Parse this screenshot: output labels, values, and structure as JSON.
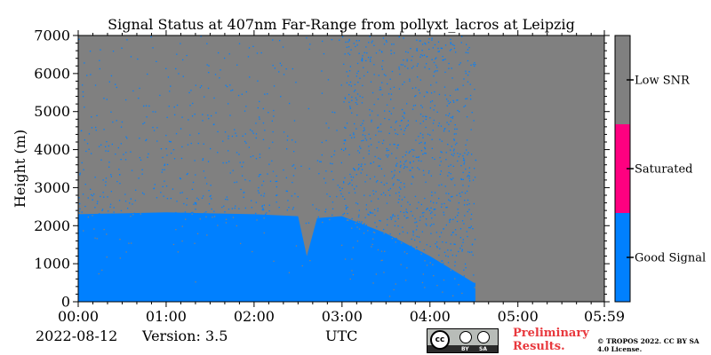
{
  "chart_data": {
    "type": "heatmap",
    "title": "Signal Status at 407nm Far-Range from pollyxt_lacros at Leipzig",
    "ylabel": "Height (m)",
    "xlabel": "UTC",
    "ylim": [
      0,
      7000
    ],
    "yticks": [
      "0",
      "1000",
      "2000",
      "3000",
      "4000",
      "5000",
      "6000",
      "7000"
    ],
    "xlim_minutes": [
      0,
      359
    ],
    "xticks": [
      "00:00",
      "01:00",
      "02:00",
      "03:00",
      "04:00",
      "05:00",
      "05:59"
    ],
    "categories": [
      "Good Signal",
      "Saturated",
      "Low SNR"
    ],
    "colors": {
      "Good Signal": "#0080ff",
      "Saturated": "#ff0080",
      "Low SNR": "#808080"
    },
    "good_signal_top_m": [
      {
        "time": "00:00",
        "height": 2300
      },
      {
        "time": "01:00",
        "height": 2350
      },
      {
        "time": "02:00",
        "height": 2300
      },
      {
        "time": "02:30",
        "height": 2250
      },
      {
        "time": "02:36",
        "height": 1200
      },
      {
        "time": "02:43",
        "height": 2200
      },
      {
        "time": "03:00",
        "height": 2250
      },
      {
        "time": "03:30",
        "height": 1800
      },
      {
        "time": "04:00",
        "height": 1200
      },
      {
        "time": "04:30",
        "height": 500
      }
    ],
    "no_data_from": "04:31"
  },
  "footer": {
    "date": "2022-08-12",
    "version": "Version: 3.5",
    "preliminary": "Preliminary Results.",
    "copyright": "© TROPOS 2022. CC BY SA 4.0 License.",
    "license_badge": [
      "BY",
      "SA"
    ]
  }
}
